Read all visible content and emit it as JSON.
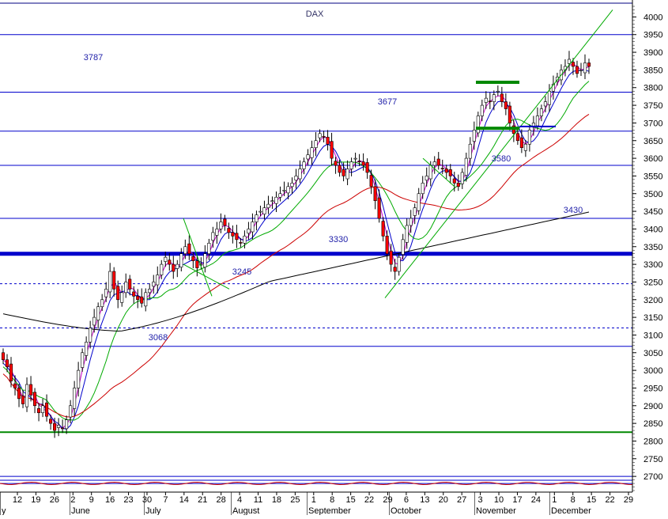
{
  "header_text": "DAX",
  "colors": {
    "up": "#ffffff",
    "down": "#ff0000",
    "wick": "#000000",
    "ma_short": "#cc00cc",
    "ma_blue": "#0000cc",
    "ma_mid": "#00aa00",
    "ma_long": "#cc0000",
    "ma_200": "#000000",
    "levels": "#0000cc",
    "support": "#008800",
    "label": "#2222aa"
  },
  "chart_data": {
    "type": "candlestick",
    "ylim": [
      2660,
      4030
    ],
    "y_ticks": [
      2700,
      2750,
      2800,
      2850,
      2900,
      2950,
      3000,
      3050,
      3100,
      3150,
      3200,
      3250,
      3300,
      3350,
      3400,
      3450,
      3500,
      3550,
      3600,
      3650,
      3700,
      3750,
      3800,
      3850,
      3900,
      3950,
      4000
    ],
    "x_day_ticks": [
      "12",
      "19",
      "26",
      "2",
      "9",
      "16",
      "23",
      "30",
      "7",
      "14",
      "21",
      "28",
      "4",
      "11",
      "18",
      "25",
      "1",
      "8",
      "15",
      "22",
      "29",
      "6",
      "13",
      "20",
      "27",
      "3",
      "10",
      "17",
      "24",
      "1",
      "8",
      "15",
      "22",
      "29"
    ],
    "months": [
      "y",
      "June",
      "July",
      "August",
      "September",
      "October",
      "November",
      "December"
    ],
    "level_labels": [
      "3787",
      "3677",
      "3580",
      "3430",
      "3330",
      "3245",
      "3068"
    ],
    "price_levels": [
      {
        "value": 3950,
        "style": "solid"
      },
      {
        "value": 3787,
        "style": "solid"
      },
      {
        "value": 3677,
        "style": "solid"
      },
      {
        "value": 3580,
        "style": "solid"
      },
      {
        "value": 3430,
        "style": "solid"
      },
      {
        "value": 3330,
        "style": "thick"
      },
      {
        "value": 3245,
        "style": "dashed"
      },
      {
        "value": 3120,
        "style": "dashed"
      },
      {
        "value": 3068,
        "style": "solid"
      },
      {
        "value": 2825,
        "style": "support"
      },
      {
        "value": 2700,
        "style": "solid"
      },
      {
        "value": 2680,
        "style": "solid"
      }
    ],
    "closes": [
      3030,
      3010,
      2970,
      2950,
      2920,
      2905,
      2960,
      2930,
      2900,
      2880,
      2900,
      2870,
      2850,
      2830,
      2845,
      2835,
      2860,
      2900,
      2950,
      3000,
      3050,
      3080,
      3120,
      3150,
      3180,
      3200,
      3230,
      3280,
      3230,
      3200,
      3220,
      3250,
      3230,
      3210,
      3200,
      3190,
      3220,
      3230,
      3250,
      3270,
      3300,
      3320,
      3300,
      3280,
      3300,
      3330,
      3350,
      3330,
      3310,
      3290,
      3300,
      3330,
      3360,
      3390,
      3400,
      3420,
      3410,
      3390,
      3380,
      3370,
      3360,
      3380,
      3400,
      3420,
      3440,
      3450,
      3460,
      3470,
      3480,
      3490,
      3500,
      3510,
      3520,
      3530,
      3550,
      3570,
      3590,
      3610,
      3630,
      3650,
      3670,
      3660,
      3640,
      3600,
      3580,
      3560,
      3550,
      3570,
      3590,
      3600,
      3590,
      3580,
      3560,
      3520,
      3480,
      3430,
      3380,
      3330,
      3300,
      3280,
      3320,
      3370,
      3410,
      3430,
      3460,
      3500,
      3530,
      3550,
      3580,
      3590,
      3580,
      3570,
      3560,
      3550,
      3530,
      3520,
      3560,
      3600,
      3640,
      3680,
      3720,
      3750,
      3770,
      3760,
      3780,
      3790,
      3760,
      3740,
      3700,
      3670,
      3650,
      3630,
      3640,
      3680,
      3700,
      3720,
      3740,
      3760,
      3790,
      3810,
      3830,
      3850,
      3860,
      3880,
      3860,
      3840,
      3850,
      3870,
      3860
    ]
  }
}
